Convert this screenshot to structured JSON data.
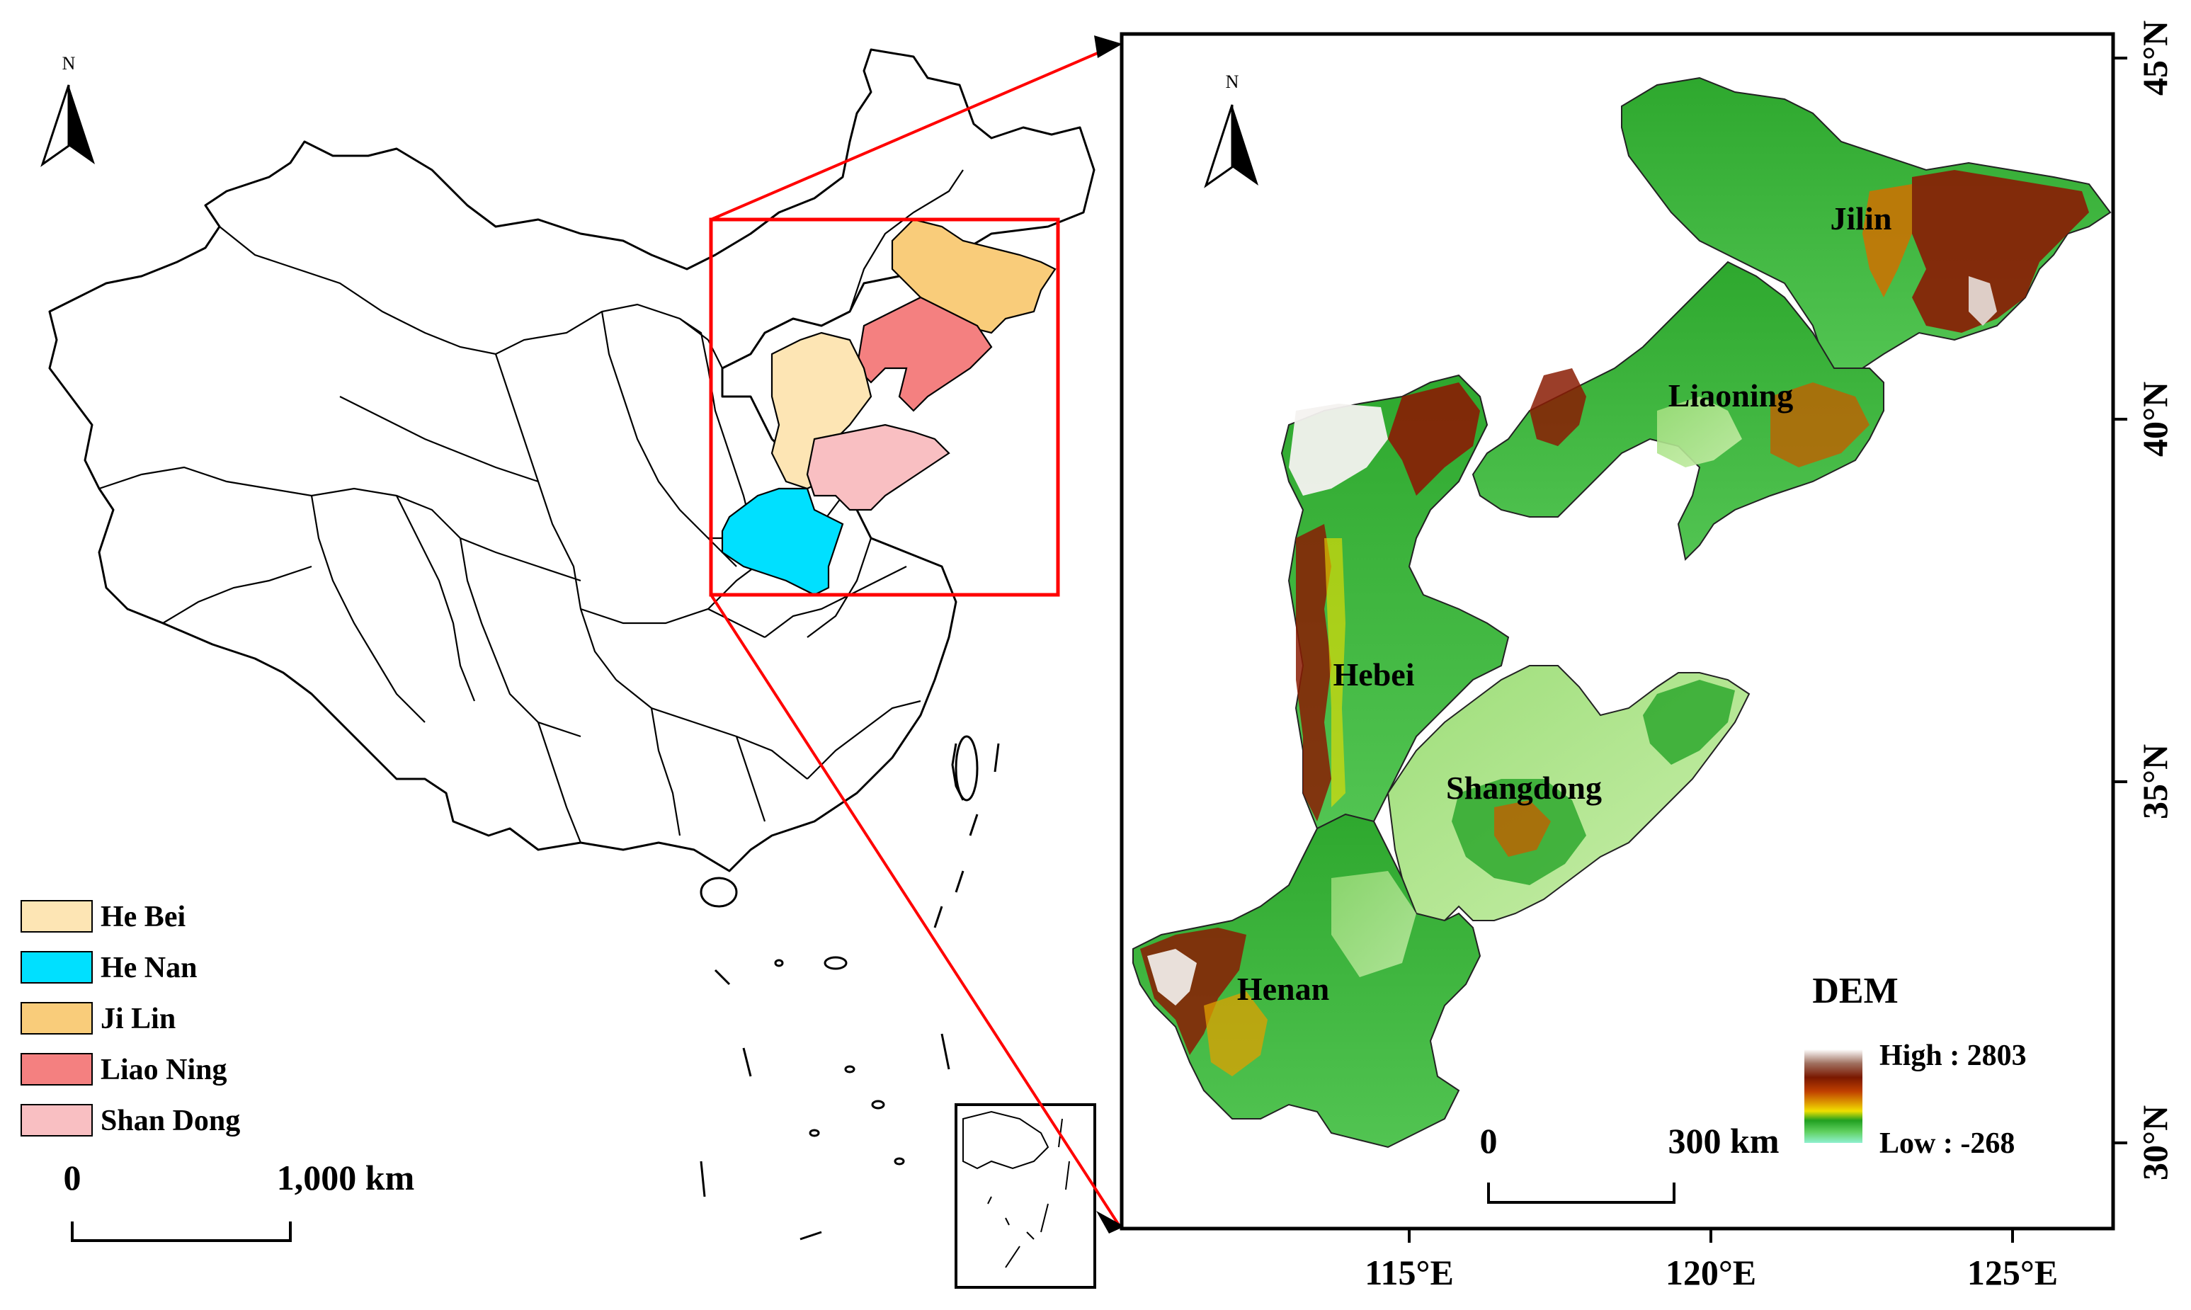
{
  "overview": {
    "north_label": "N",
    "scale": {
      "zero": "0",
      "max_label": "1,000 km"
    },
    "legend": [
      {
        "label": "He Bei",
        "color": "#fde5b4"
      },
      {
        "label": "He Nan",
        "color": "#00e0ff"
      },
      {
        "label": "Ji Lin",
        "color": "#f9cc7a"
      },
      {
        "label": "Liao Ning",
        "color": "#f48080"
      },
      {
        "label": "Shan Dong",
        "color": "#f9bfc2"
      }
    ],
    "highlight_color": "#ff0000"
  },
  "inset": {
    "north_label": "N",
    "provinces": [
      {
        "label": "Jilin"
      },
      {
        "label": "Liaoning"
      },
      {
        "label": "Hebei"
      },
      {
        "label": "Shangdong"
      },
      {
        "label": "Henan"
      }
    ],
    "scale": {
      "zero": "0",
      "max_label": "300 km"
    },
    "dem": {
      "title": "DEM",
      "high_label": "High : 2803",
      "low_label": "Low : -268",
      "colors": [
        "#ffffff",
        "#a07060",
        "#7a1800",
        "#c04000",
        "#e0a000",
        "#f0e000",
        "#20a020",
        "#60d060",
        "#90f0d0"
      ]
    },
    "lat_labels": [
      "45°N",
      "40°N",
      "35°N",
      "30°N"
    ],
    "lon_labels": [
      "115°E",
      "120°E",
      "125°E"
    ]
  }
}
